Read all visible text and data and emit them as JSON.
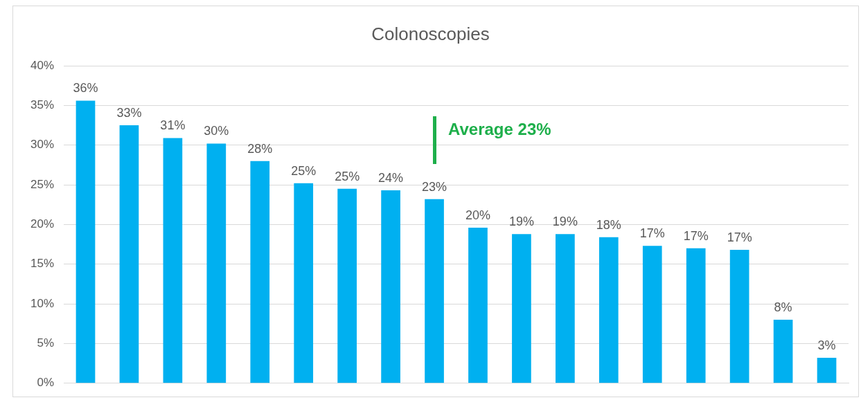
{
  "chart_data": {
    "type": "bar",
    "title": "Colonoscopies",
    "categories": [
      null,
      null,
      null,
      null,
      null,
      null,
      null,
      null,
      null,
      null,
      null,
      null,
      null,
      null,
      null,
      null,
      null,
      null
    ],
    "values": [
      35.6,
      32.5,
      30.9,
      30.2,
      28.0,
      25.2,
      24.5,
      24.3,
      23.2,
      19.6,
      18.8,
      18.8,
      18.4,
      17.3,
      17.0,
      16.8,
      8.0,
      3.2
    ],
    "value_labels": [
      "36%",
      "33%",
      "31%",
      "30%",
      "28%",
      "25%",
      "25%",
      "24%",
      "23%",
      "20%",
      "19%",
      "19%",
      "18%",
      "17%",
      "17%",
      "17%",
      "8%",
      "3%"
    ],
    "color": "#00b0f0",
    "ylim": [
      0,
      40
    ],
    "yticks": [
      {
        "value": 0,
        "label": "0%"
      },
      {
        "value": 5,
        "label": "5%"
      },
      {
        "value": 10,
        "label": "10%"
      },
      {
        "value": 15,
        "label": "15%"
      },
      {
        "value": 20,
        "label": "20%"
      },
      {
        "value": 25,
        "label": "25%"
      },
      {
        "value": 30,
        "label": "30%"
      },
      {
        "value": 35,
        "label": "35%"
      },
      {
        "value": 40,
        "label": "40%"
      }
    ],
    "grid": "y",
    "annotations": [
      "Average 23%"
    ]
  }
}
